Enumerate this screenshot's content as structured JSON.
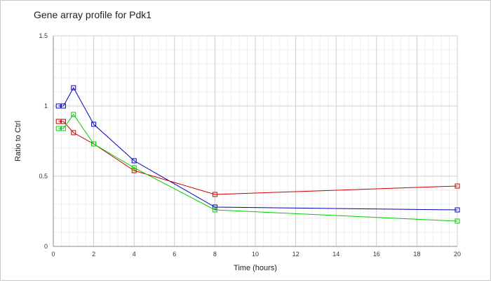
{
  "chart_data": {
    "type": "line",
    "title": "Gene array profile for Pdk1",
    "xlabel": "Time (hours)",
    "ylabel": "Ratio to Ctrl",
    "xlim": [
      0,
      20
    ],
    "ylim": [
      0,
      1.5
    ],
    "x_ticks": [
      "0",
      "2",
      "4",
      "6",
      "8",
      "10",
      "12",
      "14",
      "16",
      "18",
      "20"
    ],
    "y_ticks": [
      "0",
      "0.5",
      "1",
      "1.5"
    ],
    "grid": true,
    "legend": "none",
    "marker": "square",
    "series": [
      {
        "color": "#0000c0",
        "x": [
          0.25,
          0.5,
          1,
          2,
          4,
          8,
          20
        ],
        "y": [
          1.0,
          1.0,
          1.13,
          0.87,
          0.61,
          0.28,
          0.26
        ]
      },
      {
        "color": "#cc0000",
        "x": [
          0.25,
          0.5,
          1,
          2,
          4,
          8,
          20
        ],
        "y": [
          0.89,
          0.89,
          0.81,
          0.73,
          0.54,
          0.37,
          0.43
        ]
      },
      {
        "color": "#00cc00",
        "x": [
          0.25,
          0.5,
          1,
          2,
          4,
          8,
          20
        ],
        "y": [
          0.84,
          0.84,
          0.94,
          0.73,
          0.56,
          0.26,
          0.18
        ]
      }
    ]
  }
}
